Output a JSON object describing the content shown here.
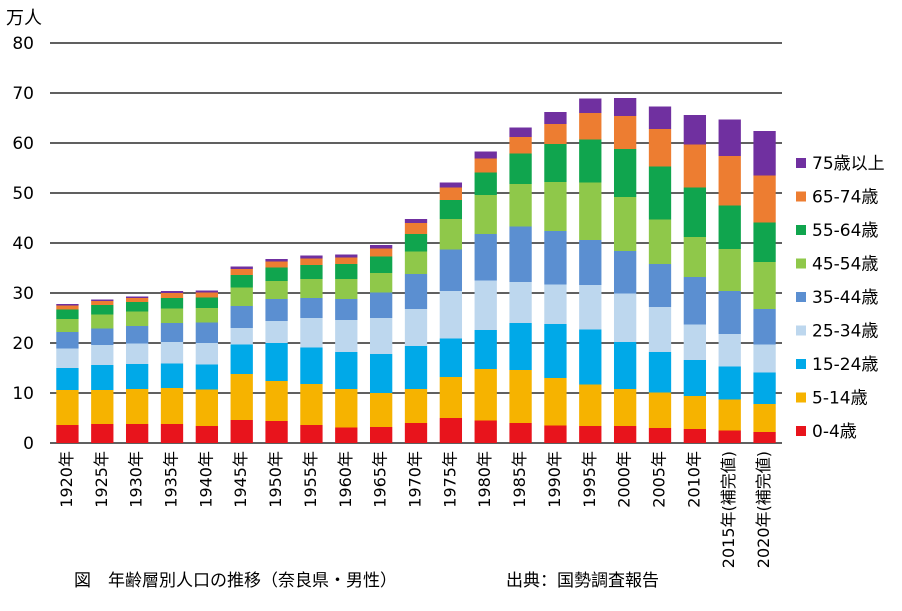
{
  "chart_data": {
    "type": "bar",
    "stacked": true,
    "y_unit": "万人",
    "ylim": [
      0,
      80
    ],
    "yticks": [
      0,
      10,
      20,
      30,
      40,
      50,
      60,
      70,
      80
    ],
    "grid": true,
    "legend_placement": "right",
    "categories": [
      "1920年",
      "1925年",
      "1930年",
      "1935年",
      "1940年",
      "1945年",
      "1950年",
      "1955年",
      "1960年",
      "1965年",
      "1970年",
      "1975年",
      "1980年",
      "1985年",
      "1990年",
      "1995年",
      "2000年",
      "2005年",
      "2010年",
      "2015年(補完値)",
      "2020年(補完値)"
    ],
    "series": [
      {
        "name": "0-4歳",
        "color": "#e8141c",
        "values": [
          3.6,
          3.8,
          3.8,
          3.8,
          3.4,
          4.6,
          4.4,
          3.6,
          3.1,
          3.2,
          4.0,
          5.0,
          4.5,
          4.0,
          3.5,
          3.4,
          3.4,
          3.0,
          2.8,
          2.5,
          2.2
        ]
      },
      {
        "name": "5-14歳",
        "color": "#f6b300",
        "values": [
          7.0,
          6.8,
          7.0,
          7.2,
          7.3,
          9.2,
          8.0,
          8.2,
          7.7,
          6.8,
          6.8,
          8.2,
          10.3,
          10.6,
          9.5,
          8.3,
          7.4,
          7.1,
          6.6,
          6.2,
          5.6
        ]
      },
      {
        "name": "15-24歳",
        "color": "#00a9e8",
        "values": [
          4.4,
          5.0,
          5.0,
          4.9,
          5.0,
          5.9,
          7.6,
          7.3,
          7.4,
          7.8,
          8.6,
          7.7,
          7.8,
          9.4,
          10.8,
          11.0,
          9.4,
          8.1,
          7.2,
          6.6,
          6.3
        ]
      },
      {
        "name": "25-34歳",
        "color": "#bdd7ee",
        "values": [
          3.9,
          4.0,
          4.1,
          4.3,
          4.3,
          3.3,
          4.4,
          5.9,
          6.4,
          7.2,
          7.4,
          9.5,
          9.9,
          8.2,
          7.9,
          8.9,
          9.7,
          9.0,
          7.1,
          6.5,
          5.6
        ]
      },
      {
        "name": "35-44歳",
        "color": "#5b8fd1",
        "values": [
          3.3,
          3.3,
          3.5,
          3.8,
          4.1,
          4.4,
          4.4,
          4.0,
          4.2,
          5.1,
          7.0,
          8.3,
          9.3,
          11.1,
          10.7,
          9.0,
          8.5,
          8.6,
          9.5,
          8.6,
          7.1
        ]
      },
      {
        "name": "45-54歳",
        "color": "#8fc84a",
        "values": [
          2.6,
          2.8,
          2.9,
          2.9,
          2.9,
          3.7,
          3.6,
          3.8,
          4.0,
          3.9,
          4.5,
          6.1,
          7.8,
          8.5,
          9.8,
          11.5,
          10.8,
          8.9,
          8.0,
          8.4,
          9.4
        ]
      },
      {
        "name": "55-64歳",
        "color": "#10a54e",
        "values": [
          1.9,
          1.9,
          1.9,
          2.1,
          2.1,
          2.5,
          2.7,
          2.8,
          3.0,
          3.3,
          3.5,
          3.8,
          4.5,
          6.1,
          7.6,
          8.6,
          9.6,
          10.6,
          9.9,
          8.7,
          7.9
        ]
      },
      {
        "name": "65-74歳",
        "color": "#ed7d31",
        "values": [
          0.8,
          0.8,
          0.8,
          1.0,
          1.0,
          1.2,
          1.2,
          1.3,
          1.3,
          1.6,
          2.2,
          2.5,
          2.8,
          3.3,
          4.0,
          5.3,
          6.6,
          7.5,
          8.6,
          9.9,
          9.4
        ]
      },
      {
        "name": "75歳以上",
        "color": "#7030a0",
        "values": [
          0.3,
          0.3,
          0.3,
          0.4,
          0.4,
          0.5,
          0.5,
          0.6,
          0.6,
          0.7,
          0.8,
          1.0,
          1.4,
          1.9,
          2.4,
          2.9,
          3.6,
          4.5,
          5.9,
          7.3,
          8.9
        ]
      }
    ]
  },
  "caption": {
    "title": "図　年齢層別人口の推移（奈良県・男性）",
    "source": "出典：国勢調査報告"
  }
}
